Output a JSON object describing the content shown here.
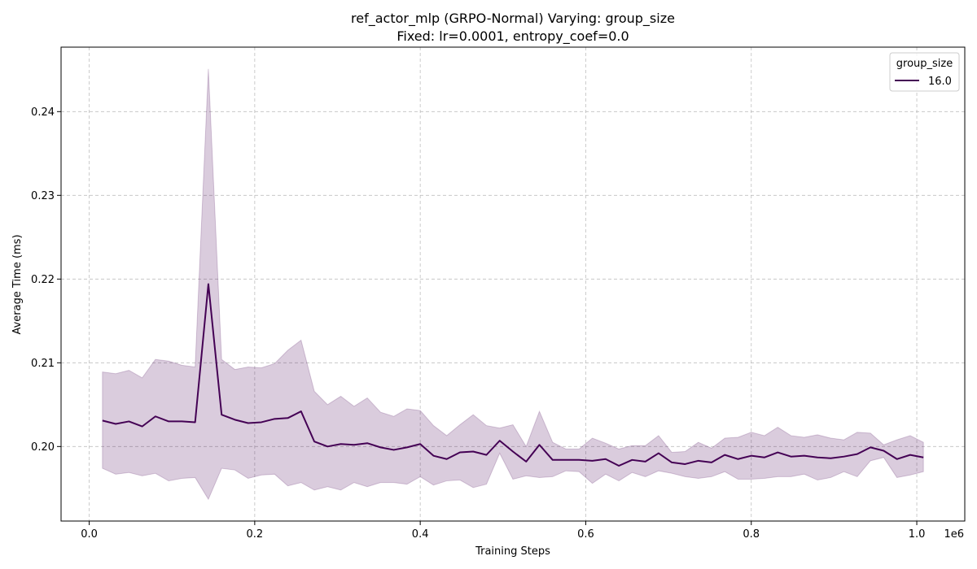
{
  "chart_data": {
    "type": "line",
    "title": "ref_actor_mlp (GRPO-Normal) Varying: group_size",
    "subtitle": "Fixed: lr=0.0001, entropy_coef=0.0",
    "xlabel": "Training Steps",
    "ylabel": "Average Time (ms)",
    "x_offset_label": "1e6",
    "xlim": [
      -0.034,
      1.058
    ],
    "ylim": [
      0.1911,
      0.2477
    ],
    "xticks": [
      0.0,
      0.2,
      0.4,
      0.6,
      0.8,
      1.0
    ],
    "xtick_labels": [
      "0.0",
      "0.2",
      "0.4",
      "0.6",
      "0.8",
      "1.0"
    ],
    "yticks": [
      0.2,
      0.21,
      0.22,
      0.23,
      0.24
    ],
    "ytick_labels": [
      "0.20",
      "0.21",
      "0.22",
      "0.23",
      "0.24"
    ],
    "grid": true,
    "legend": {
      "title": "group_size",
      "position": "top-right"
    },
    "colors": {
      "line": "#440154",
      "band": "#440154",
      "grid": "#b0b0b0"
    },
    "series": [
      {
        "name": "16.0",
        "x": [
          0.016,
          0.032,
          0.048,
          0.064,
          0.08,
          0.096,
          0.112,
          0.128,
          0.144,
          0.16,
          0.176,
          0.192,
          0.208,
          0.224,
          0.24,
          0.256,
          0.272,
          0.288,
          0.304,
          0.32,
          0.336,
          0.352,
          0.368,
          0.384,
          0.4,
          0.416,
          0.432,
          0.448,
          0.464,
          0.48,
          0.496,
          0.512,
          0.528,
          0.544,
          0.56,
          0.576,
          0.592,
          0.608,
          0.624,
          0.64,
          0.656,
          0.672,
          0.688,
          0.704,
          0.72,
          0.736,
          0.752,
          0.768,
          0.784,
          0.8,
          0.816,
          0.832,
          0.848,
          0.864,
          0.88,
          0.896,
          0.912,
          0.928,
          0.944,
          0.96,
          0.976,
          0.992,
          1.008
        ],
        "y": [
          0.2031,
          0.2027,
          0.203,
          0.2024,
          0.2036,
          0.203,
          0.203,
          0.2029,
          0.2194,
          0.2038,
          0.2032,
          0.2028,
          0.2029,
          0.2033,
          0.2034,
          0.2042,
          0.2006,
          0.2,
          0.2003,
          0.2002,
          0.2004,
          0.1999,
          0.1996,
          0.1999,
          0.2003,
          0.1989,
          0.1985,
          0.1993,
          0.1994,
          0.199,
          0.2007,
          0.1994,
          0.1982,
          0.2002,
          0.1984,
          0.1984,
          0.1984,
          0.1983,
          0.1985,
          0.1977,
          0.1984,
          0.1982,
          0.1992,
          0.1981,
          0.1979,
          0.1983,
          0.1981,
          0.199,
          0.1985,
          0.1989,
          0.1987,
          0.1993,
          0.1988,
          0.1989,
          0.1987,
          0.1986,
          0.1988,
          0.1991,
          0.1999,
          0.1995,
          0.1985,
          0.199,
          0.1987
        ],
        "lower": [
          0.1974,
          0.1967,
          0.1969,
          0.1965,
          0.1968,
          0.1959,
          0.1962,
          0.1963,
          0.1937,
          0.1974,
          0.1972,
          0.1962,
          0.1966,
          0.1967,
          0.1953,
          0.1957,
          0.1948,
          0.1952,
          0.1948,
          0.1957,
          0.1952,
          0.1957,
          0.1957,
          0.1955,
          0.1964,
          0.1954,
          0.1959,
          0.196,
          0.1951,
          0.1955,
          0.1992,
          0.1961,
          0.1965,
          0.1963,
          0.1964,
          0.1971,
          0.197,
          0.1956,
          0.1967,
          0.1959,
          0.1969,
          0.1964,
          0.1971,
          0.1968,
          0.1964,
          0.1962,
          0.1964,
          0.197,
          0.1961,
          0.1961,
          0.1962,
          0.1964,
          0.1964,
          0.1967,
          0.196,
          0.1963,
          0.197,
          0.1964,
          0.1983,
          0.1987,
          0.1963,
          0.1966,
          0.197
        ],
        "upper": [
          0.2089,
          0.2087,
          0.2091,
          0.2082,
          0.2104,
          0.2102,
          0.2097,
          0.2095,
          0.2451,
          0.2104,
          0.2092,
          0.2095,
          0.2094,
          0.2099,
          0.2115,
          0.2127,
          0.2066,
          0.205,
          0.206,
          0.2048,
          0.2058,
          0.2041,
          0.2036,
          0.2045,
          0.2043,
          0.2025,
          0.2013,
          0.2026,
          0.2038,
          0.2025,
          0.2022,
          0.2026,
          0.2,
          0.2042,
          0.2005,
          0.1997,
          0.1997,
          0.201,
          0.2004,
          0.1997,
          0.2001,
          0.2001,
          0.2013,
          0.1993,
          0.1994,
          0.2005,
          0.1998,
          0.201,
          0.2011,
          0.2017,
          0.2013,
          0.2023,
          0.2013,
          0.2011,
          0.2014,
          0.201,
          0.2008,
          0.2017,
          0.2016,
          0.2002,
          0.2008,
          0.2013,
          0.2005
        ]
      }
    ]
  }
}
